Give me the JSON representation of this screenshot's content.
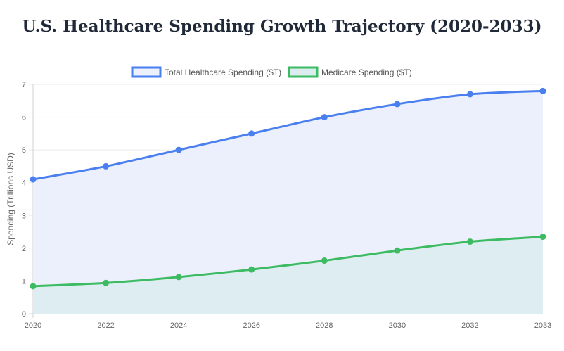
{
  "chart_data": {
    "type": "line",
    "title": "U.S. Healthcare Spending Growth Trajectory (2020-2033)",
    "xlabel": "",
    "ylabel": "Spending (Trillions USD)",
    "categories": [
      "2020",
      "2022",
      "2024",
      "2026",
      "2028",
      "2030",
      "2032",
      "2033"
    ],
    "ylim": [
      0,
      7
    ],
    "yticks": [
      0,
      1,
      2,
      3,
      4,
      5,
      6,
      7
    ],
    "grid": true,
    "filled": true,
    "legend_position": "top",
    "series": [
      {
        "name": "Total Healthcare Spending ($T)",
        "color": "#4a7ff0",
        "fill": "#ecf0fc",
        "values": [
          4.1,
          4.5,
          5.0,
          5.5,
          6.0,
          6.4,
          6.7,
          6.8
        ]
      },
      {
        "name": "Medicare Spending ($T)",
        "color": "#3dbb62",
        "fill": "#dbecee",
        "values": [
          0.84,
          0.94,
          1.12,
          1.35,
          1.62,
          1.93,
          2.2,
          2.35
        ]
      }
    ]
  }
}
